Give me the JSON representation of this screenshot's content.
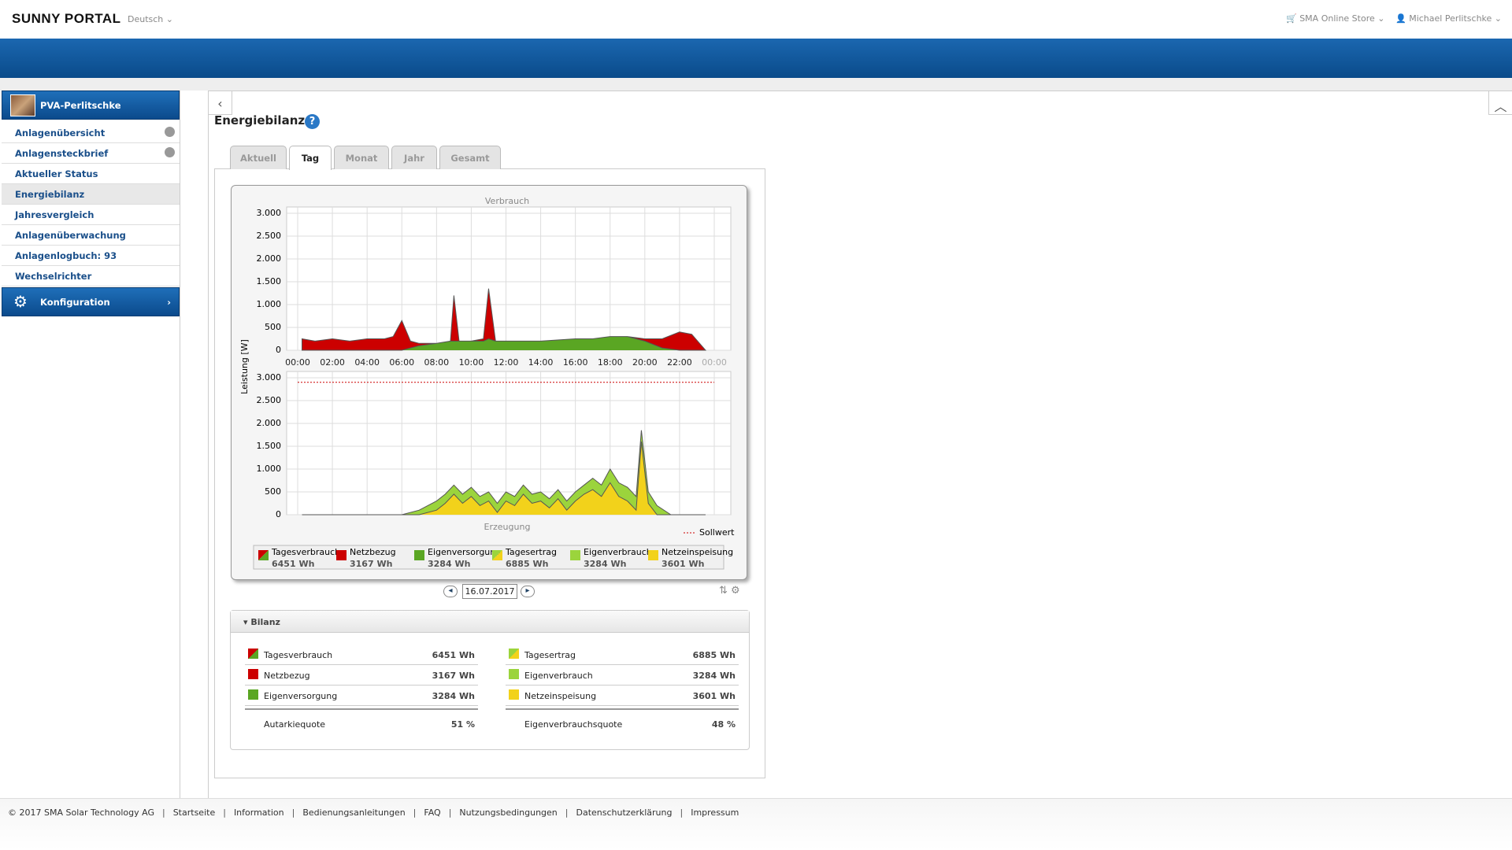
{
  "header": {
    "brand": "SUNNY PORTAL",
    "language": "Deutsch",
    "store": "SMA Online Store",
    "user": "Michael Perlitschke"
  },
  "sidebar": {
    "plant": "PVA-Perlitschke",
    "items": [
      "Anlagenübersicht",
      "Anlagensteckbrief",
      "Aktueller Status",
      "Energiebilanz",
      "Jahresvergleich",
      "Anlagenüberwachung",
      "Anlagenlogbuch: 93",
      "Wechselrichter"
    ],
    "config": "Konfiguration"
  },
  "content": {
    "title": "Energiebilanz",
    "tabs": [
      "Aktuell",
      "Tag",
      "Monat",
      "Jahr",
      "Gesamt"
    ],
    "active_tab": "Tag",
    "date": "16.07.2017"
  },
  "chart_data": {
    "type": "area",
    "y_label": "Leistung [W]",
    "xlim": [
      0,
      24
    ],
    "ylim": [
      0,
      3000
    ],
    "xticks": [
      {
        "value": 0,
        "label": "00:00"
      },
      {
        "value": 2,
        "label": "02:00"
      },
      {
        "value": 4,
        "label": "04:00"
      },
      {
        "value": 6,
        "label": "06:00"
      },
      {
        "value": 8,
        "label": "08:00"
      },
      {
        "value": 10,
        "label": "10:00"
      },
      {
        "value": 12,
        "label": "12:00"
      },
      {
        "value": 14,
        "label": "14:00"
      },
      {
        "value": 16,
        "label": "16:00"
      },
      {
        "value": 18,
        "label": "18:00"
      },
      {
        "value": 20,
        "label": "20:00"
      },
      {
        "value": 22,
        "label": "22:00"
      },
      {
        "value": 24,
        "label": "00:00"
      }
    ],
    "yticks": [
      0,
      500,
      {
        "value": 1000,
        "label": "1.000"
      },
      {
        "value": 1500,
        "label": "1.500"
      },
      {
        "value": 2000,
        "label": "2.000"
      },
      {
        "value": 2500,
        "label": "2.500"
      },
      {
        "value": 3000,
        "label": "3.000"
      }
    ],
    "grid": true,
    "panels": [
      {
        "title": "Verbrauch",
        "x": [
          0.25,
          1,
          2,
          3,
          4,
          5,
          5.5,
          6,
          6.5,
          7,
          8,
          8.8,
          9,
          9.3,
          10,
          10.7,
          11,
          11.4,
          12,
          14,
          16,
          17,
          18,
          19,
          20,
          21,
          22,
          22.7,
          23.5
        ],
        "series": [
          {
            "name": "Eigenversorgung",
            "color": "#5aa623",
            "values": [
              0,
              0,
              0,
              0,
              0,
              0,
              0,
              0,
              50,
              100,
              150,
              200,
              200,
              200,
              200,
              200,
              250,
              200,
              200,
              200,
              250,
              250,
              300,
              300,
              200,
              50,
              0,
              0,
              0
            ]
          },
          {
            "name": "Netzbezug",
            "color": "#cc0000",
            "values": [
              250,
              200,
              250,
              200,
              250,
              250,
              300,
              650,
              150,
              50,
              0,
              0,
              1000,
              0,
              0,
              50,
              1100,
              0,
              0,
              0,
              0,
              0,
              0,
              0,
              50,
              200,
              400,
              350,
              0
            ]
          }
        ]
      },
      {
        "title": "Erzeugung",
        "x": [
          0.25,
          6,
          7,
          8,
          8.5,
          9,
          9.5,
          10,
          10.5,
          11,
          11.5,
          12,
          12.5,
          13,
          13.5,
          14,
          14.5,
          15,
          15.5,
          16,
          16.5,
          17,
          17.5,
          18,
          18.5,
          19,
          19.5,
          19.8,
          20.2,
          20.7,
          21.5,
          23.5
        ],
        "series": [
          {
            "name": "Netzeinspeisung",
            "color": "#f2d21b",
            "values": [
              0,
              0,
              0,
              100,
              250,
              450,
              250,
              400,
              200,
              300,
              50,
              300,
              200,
              450,
              250,
              300,
              150,
              350,
              100,
              300,
              450,
              550,
              400,
              700,
              400,
              300,
              100,
              1600,
              250,
              0,
              0,
              0
            ]
          },
          {
            "name": "Eigenverbrauch",
            "color": "#9bd43c",
            "values": [
              0,
              0,
              100,
              200,
              200,
              200,
              200,
              200,
              200,
              200,
              200,
              200,
              200,
              200,
              200,
              200,
              200,
              200,
              200,
              200,
              200,
              250,
              250,
              300,
              300,
              300,
              300,
              250,
              250,
              200,
              0,
              0
            ]
          }
        ],
        "setpoint": {
          "label": "Sollwert",
          "value": 2900,
          "color": "#cc0000"
        }
      }
    ],
    "legend": [
      {
        "name": "Tagesverbrauch",
        "amount": "6451 Wh",
        "colors": [
          "#cc0000",
          "#5aa623"
        ]
      },
      {
        "name": "Netzbezug",
        "amount": "3167 Wh",
        "colors": [
          "#cc0000"
        ]
      },
      {
        "name": "Eigenversorgung",
        "amount": "3284 Wh",
        "colors": [
          "#5aa623"
        ]
      },
      {
        "name": "Tagesertrag",
        "amount": "6885 Wh",
        "colors": [
          "#9bd43c",
          "#f2d21b"
        ]
      },
      {
        "name": "Eigenverbrauch",
        "amount": "3284 Wh",
        "colors": [
          "#9bd43c"
        ]
      },
      {
        "name": "Netzeinspeisung",
        "amount": "3601 Wh",
        "colors": [
          "#f2d21b"
        ]
      }
    ]
  },
  "bilanz": {
    "title": "Bilanz",
    "left": [
      [
        "Tagesverbrauch",
        "6451 Wh"
      ],
      [
        "Netzbezug",
        "3167 Wh"
      ],
      [
        "Eigenversorgung",
        "3284 Wh"
      ]
    ],
    "left_total": [
      "Autarkiequote",
      "51 %"
    ],
    "right": [
      [
        "Tagesertrag",
        "6885 Wh"
      ],
      [
        "Eigenverbrauch",
        "3284 Wh"
      ],
      [
        "Netzeinspeisung",
        "3601 Wh"
      ]
    ],
    "right_total": [
      "Eigenverbrauchsquote",
      "48 %"
    ]
  },
  "footer": {
    "copyright": "© 2017 SMA Solar Technology AG",
    "links": [
      "Startseite",
      "Information",
      "Bedienungsanleitungen",
      "FAQ",
      "Nutzungsbedingungen",
      "Datenschutzerklärung",
      "Impressum"
    ]
  }
}
